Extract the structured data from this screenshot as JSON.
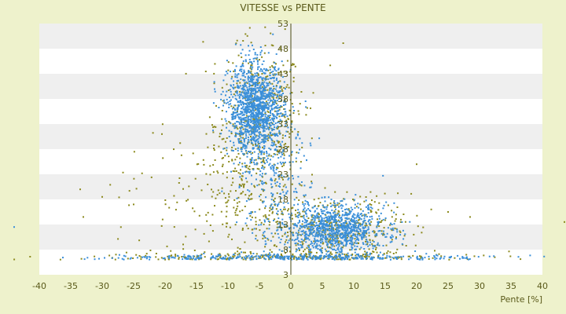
{
  "chart_data": {
    "type": "scatter",
    "title": "VITESSE vs PENTE",
    "xlabel": "Pente [%]",
    "ylabel": "",
    "xlim": [
      -40,
      40
    ],
    "ylim": [
      3,
      53
    ],
    "x_ticks": [
      -40,
      -35,
      -30,
      -25,
      -20,
      -15,
      -10,
      -5,
      0,
      5,
      10,
      15,
      20,
      25,
      30,
      35,
      40
    ],
    "y_ticks": [
      3,
      8,
      13,
      18,
      23,
      28,
      33,
      38,
      43,
      48,
      53
    ],
    "grid": "horizontal alternating bands",
    "legend": "none",
    "colors": {
      "background": "#eef2cc",
      "plot_band_white": "#ffffff",
      "plot_band_gray": "#efefef",
      "series_blue": "#3a8fd9",
      "series_olive": "#8c8a1e",
      "axis_text": "#5a5a1a",
      "zero_axis": "#4a4a10"
    },
    "series": [
      {
        "color": "#3a8fd9",
        "clusters": [
          {
            "cx": -5.5,
            "cy": 36,
            "sx": 2.2,
            "sy": 4.5,
            "n": 1300
          },
          {
            "cx": 7,
            "cy": 12,
            "sx": 4,
            "sy": 2.5,
            "n": 1000
          },
          {
            "cx": 0,
            "cy": 6.3,
            "sx": 15,
            "sy": 0.4,
            "n": 350
          },
          {
            "cx": -3,
            "cy": 22,
            "sx": 3,
            "sy": 6,
            "n": 250
          }
        ]
      },
      {
        "color": "#8c8a1e",
        "clusters": [
          {
            "cx": -5,
            "cy": 33,
            "sx": 3.5,
            "sy": 8,
            "n": 500
          },
          {
            "cx": 7,
            "cy": 12,
            "sx": 6,
            "sy": 3.5,
            "n": 450
          },
          {
            "cx": 0,
            "cy": 6.5,
            "sx": 14,
            "sy": 0.6,
            "n": 250
          },
          {
            "cx": -10,
            "cy": 18,
            "sx": 7,
            "sy": 6,
            "n": 180
          }
        ]
      }
    ],
    "outliers": [
      {
        "x": -44,
        "y": 12.5,
        "color": "#3a8fd9"
      },
      {
        "x": 43.5,
        "y": 13.5,
        "color": "#8c8a1e"
      },
      {
        "x": -33.5,
        "y": 20,
        "color": "#8c8a1e"
      },
      {
        "x": -30,
        "y": 18.5,
        "color": "#8c8a1e"
      },
      {
        "x": -33,
        "y": 14.5,
        "color": "#8c8a1e"
      },
      {
        "x": -20.5,
        "y": 31,
        "color": "#8c8a1e"
      },
      {
        "x": 20,
        "y": 25,
        "color": "#8c8a1e"
      },
      {
        "x": 28.5,
        "y": 14.5,
        "color": "#8c8a1e"
      },
      {
        "x": 25,
        "y": 15.5,
        "color": "#8c8a1e"
      },
      {
        "x": -25,
        "y": 17,
        "color": "#8c8a1e"
      }
    ]
  }
}
